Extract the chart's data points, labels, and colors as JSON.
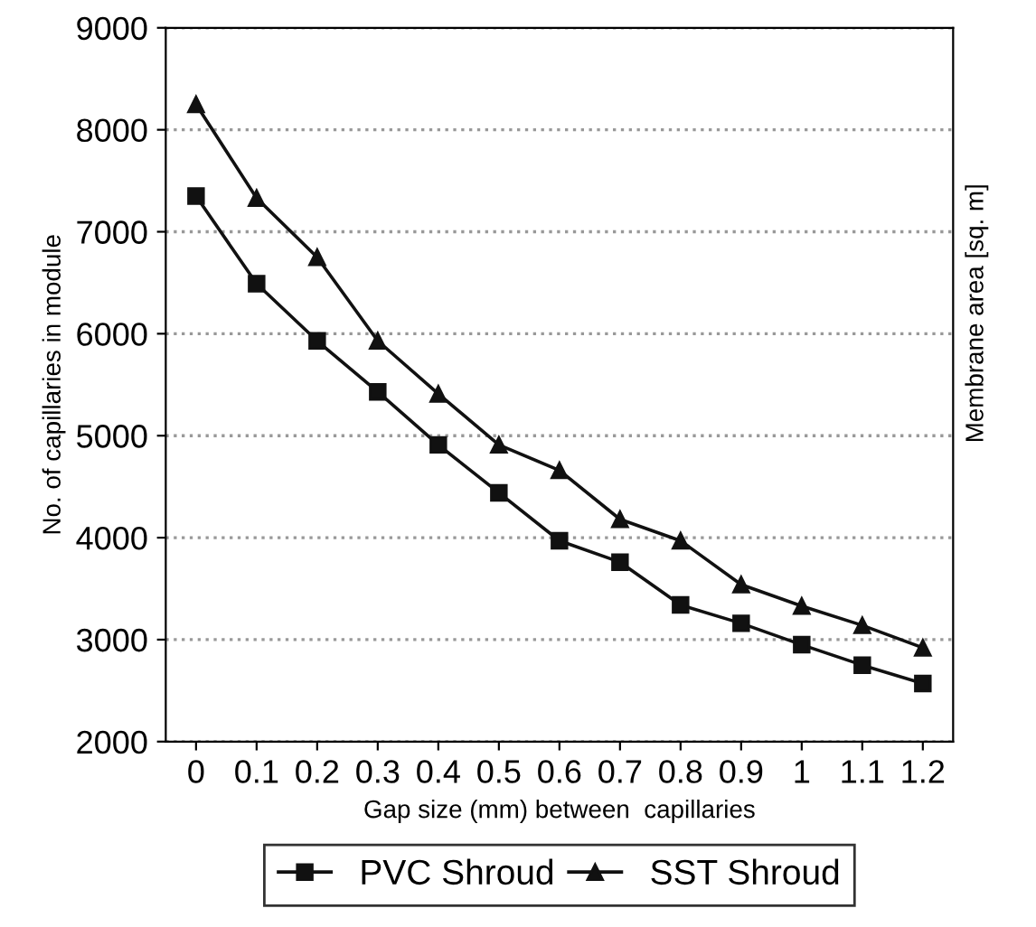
{
  "chart_data": {
    "type": "line",
    "xlabel": "Gap size (mm) between  capillaries",
    "ylabel": "No. of capillaries in module",
    "y2label": "Membrane area [sq. m]",
    "categories": [
      "0",
      "0.1",
      "0.2",
      "0.3",
      "0.4",
      "0.5",
      "0.6",
      "0.7",
      "0.8",
      "0.9",
      "1",
      "1.1",
      "1.2"
    ],
    "series": [
      {
        "name": "PVC Shroud",
        "color": "#111111",
        "marker": "square",
        "values": [
          7350,
          6490,
          5930,
          5430,
          4910,
          4440,
          3970,
          3760,
          3340,
          3160,
          2950,
          2750,
          2570
        ]
      },
      {
        "name": "SST Shroud",
        "color": "#111111",
        "marker": "triangle",
        "values": [
          8250,
          7330,
          6750,
          5930,
          5410,
          4910,
          4660,
          4180,
          3970,
          3540,
          3330,
          3140,
          2920
        ]
      }
    ],
    "ylim": [
      2000,
      9000
    ],
    "yticks": [
      2000,
      3000,
      4000,
      5000,
      6000,
      7000,
      8000,
      9000
    ],
    "grid": "y",
    "legend": "bottom",
    "line_style": "solid"
  }
}
